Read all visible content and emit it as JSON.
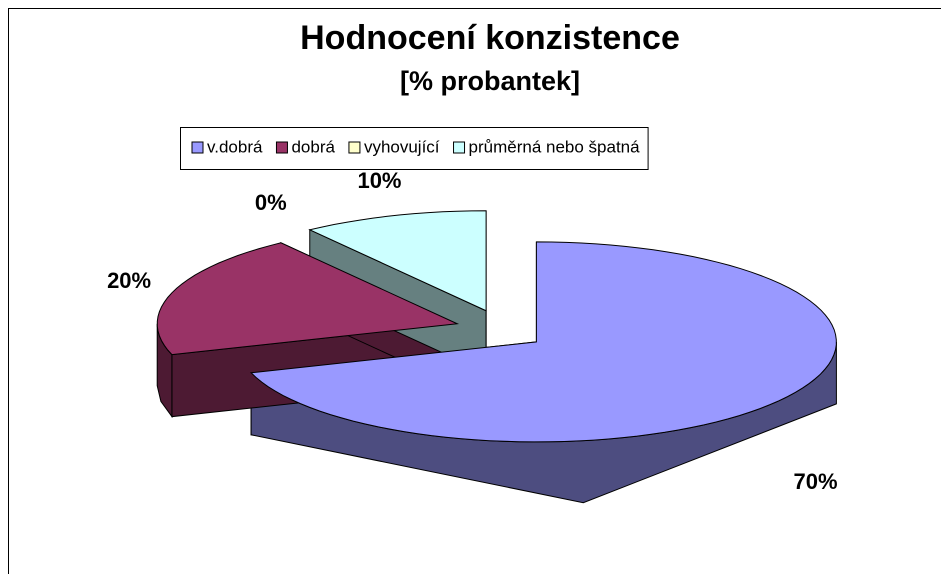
{
  "chart_data": {
    "type": "pie3d",
    "title": "Hodnocení konzistence",
    "subtitle": "[% probantek]",
    "categories": [
      "v.dobrá",
      "dobrá",
      "vyhovující",
      "průměrná nebo špatná"
    ],
    "values": [
      70,
      20,
      0,
      10
    ],
    "value_labels": [
      "70%",
      "20%",
      "0%",
      "10%"
    ],
    "colors": [
      "#9999ff",
      "#993366",
      "#ffffcc",
      "#ccffff"
    ],
    "legend": "top"
  }
}
